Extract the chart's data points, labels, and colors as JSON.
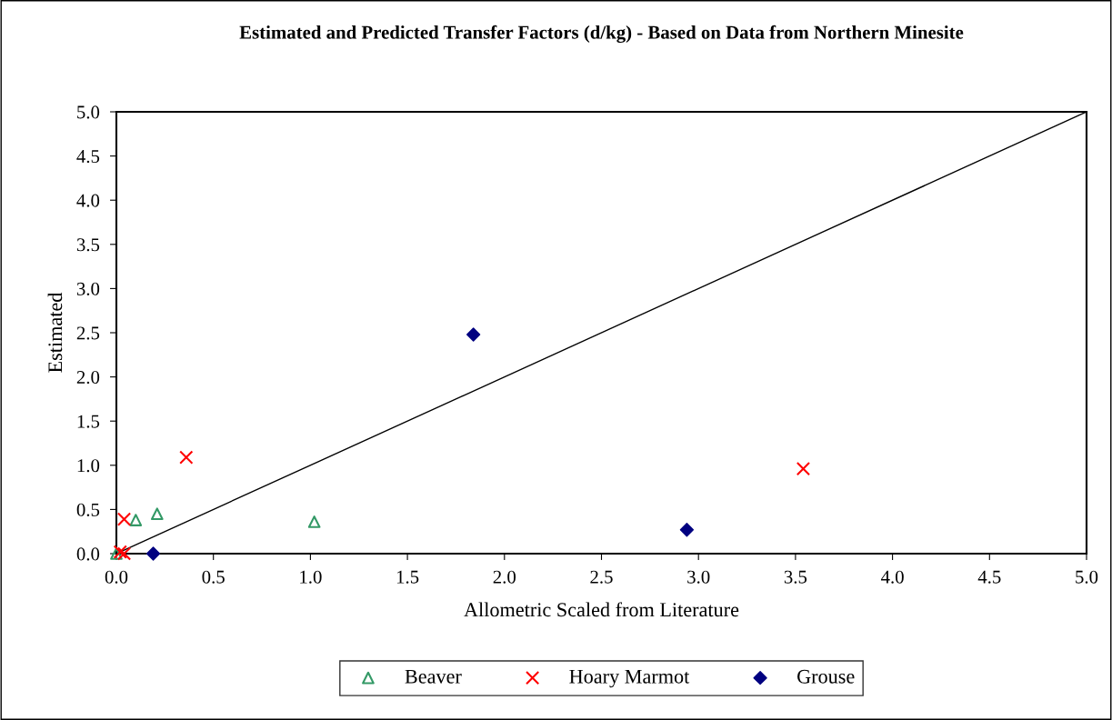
{
  "chart_data": {
    "type": "scatter",
    "title": "Estimated and Predicted Transfer Factors (d/kg) - Based on Data from Northern Minesite",
    "xlabel": "Allometric Scaled from Literature",
    "ylabel": "Estimated",
    "xlim": [
      0,
      5
    ],
    "ylim": [
      0,
      5
    ],
    "xticks": [
      {
        "value": 0,
        "label": "0.0"
      },
      {
        "value": 0.5,
        "label": "0.5"
      },
      {
        "value": 1,
        "label": "1.0"
      },
      {
        "value": 1.5,
        "label": "1.5"
      },
      {
        "value": 2,
        "label": "2.0"
      },
      {
        "value": 2.5,
        "label": "2.5"
      },
      {
        "value": 3,
        "label": "3.0"
      },
      {
        "value": 3.5,
        "label": "3.5"
      },
      {
        "value": 4,
        "label": "4.0"
      },
      {
        "value": 4.5,
        "label": "4.5"
      },
      {
        "value": 5,
        "label": "5.0"
      }
    ],
    "yticks": [
      {
        "value": 0,
        "label": "0.0"
      },
      {
        "value": 0.5,
        "label": "0.5"
      },
      {
        "value": 1,
        "label": "1.0"
      },
      {
        "value": 1.5,
        "label": "1.5"
      },
      {
        "value": 2,
        "label": "2.0"
      },
      {
        "value": 2.5,
        "label": "2.5"
      },
      {
        "value": 3,
        "label": "3.0"
      },
      {
        "value": 3.5,
        "label": "3.5"
      },
      {
        "value": 4,
        "label": "4.0"
      },
      {
        "value": 4.5,
        "label": "4.5"
      },
      {
        "value": 5,
        "label": "5.0"
      }
    ],
    "grid": false,
    "legend": "bottom",
    "series": [
      {
        "name": "Beaver",
        "color": "#339966",
        "marker": "triangle",
        "x": [
          0.0,
          0.1,
          0.21,
          1.02
        ],
        "values": [
          0.0,
          0.38,
          0.45,
          0.36
        ]
      },
      {
        "name": "Hoary Marmot",
        "color": "#ff0000",
        "marker": "cross",
        "x": [
          0.04,
          0.36,
          0.02,
          0.04,
          3.54
        ],
        "values": [
          0.39,
          1.09,
          0.02,
          0.0,
          0.96
        ]
      },
      {
        "name": "Grouse",
        "color": "#000080",
        "marker": "diamond",
        "x": [
          0.19,
          1.84,
          2.94
        ],
        "values": [
          0.0,
          2.48,
          0.27
        ]
      },
      {
        "type": "line",
        "color": "#000000",
        "marker": "none",
        "x": [
          0,
          5
        ],
        "values": [
          0,
          5
        ]
      }
    ]
  }
}
